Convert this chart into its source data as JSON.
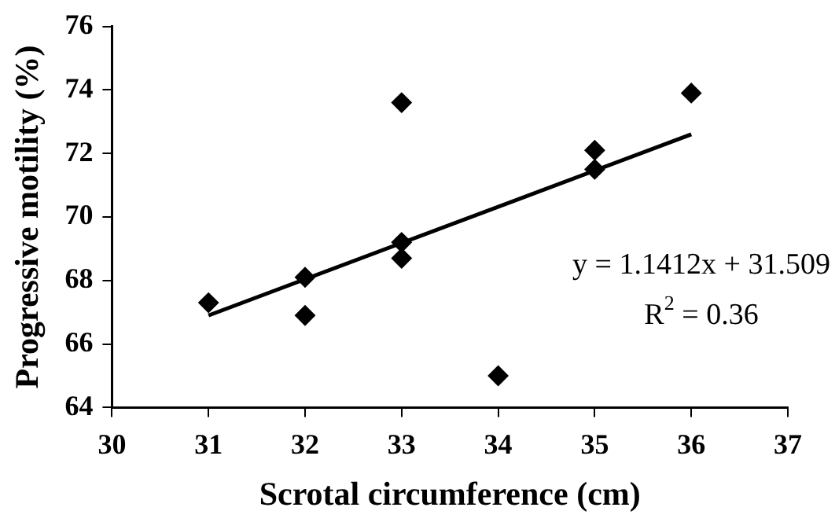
{
  "chart_data": {
    "type": "scatter",
    "xlabel": "Scrotal circumference (cm)",
    "ylabel": "Progressive motility (%)",
    "xlim": [
      30,
      37
    ],
    "xticks": [
      30,
      31,
      32,
      33,
      34,
      35,
      36,
      37
    ],
    "ylim": [
      64,
      76
    ],
    "yticks": [
      64,
      66,
      68,
      70,
      72,
      74,
      76
    ],
    "grid": false,
    "legend": false,
    "series": [
      {
        "marker": "diamond",
        "color": "#000000",
        "x": [
          31,
          32,
          32,
          33,
          33,
          33,
          34,
          35,
          35,
          36
        ],
        "values": [
          67.3,
          68.1,
          66.9,
          73.6,
          69.2,
          68.7,
          65.0,
          72.1,
          71.5,
          73.9
        ]
      },
      {
        "type": "line",
        "marker": "none",
        "color": "#000000",
        "x": [
          31,
          36
        ],
        "values": [
          66.9,
          72.6
        ],
        "line_style": "solid"
      }
    ],
    "annotations": [
      "y = 1.1412x + 31.509",
      "R$^{2}$ = 0.36"
    ]
  }
}
